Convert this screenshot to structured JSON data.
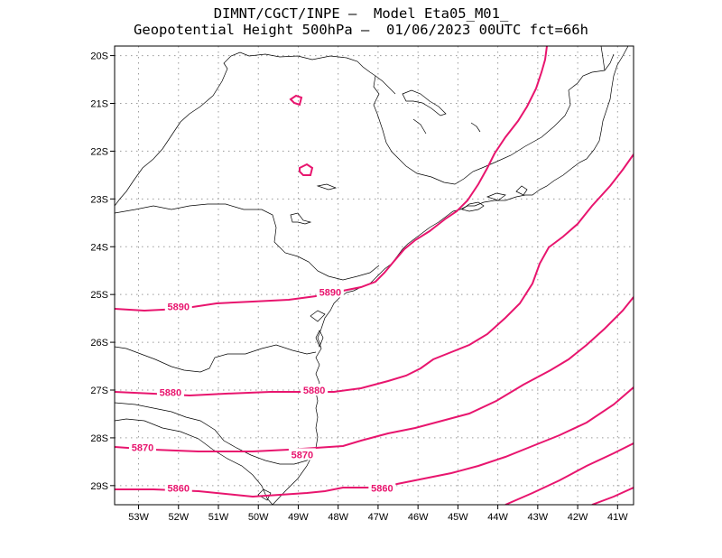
{
  "title": {
    "line1": "DIMNT/CGCT/INPE –  Model Eta05_M01_",
    "line2": "Geopotential Height 500hPa –  01/06/2023 00UTC fct=66h"
  },
  "axes": {
    "lat_ticks": [
      "20S",
      "21S",
      "22S",
      "23S",
      "24S",
      "25S",
      "26S",
      "27S",
      "28S",
      "29S"
    ],
    "lon_ticks": [
      "53W",
      "52W",
      "51W",
      "50W",
      "49W",
      "48W",
      "47W",
      "46W",
      "45W",
      "44W",
      "43W",
      "42W",
      "41W"
    ]
  },
  "colors": {
    "contour": "#e8156e",
    "coast": "#000000",
    "grid": "#9a9a9a"
  },
  "chart_data": {
    "type": "contour",
    "variable": "Geopotential Height 500hPa",
    "lon_range": [
      -53.6,
      -40.6
    ],
    "lat_range": [
      -29.4,
      -19.8
    ],
    "grid": true,
    "contour_labels": [
      {
        "text": "5890",
        "lon": -52.0,
        "lat": -25.25
      },
      {
        "text": "5890",
        "lon": -48.2,
        "lat": -24.95
      },
      {
        "text": "5880",
        "lon": -52.2,
        "lat": -27.05
      },
      {
        "text": "5880",
        "lon": -48.6,
        "lat": -27.0
      },
      {
        "text": "5870",
        "lon": -52.9,
        "lat": -28.2
      },
      {
        "text": "5870",
        "lon": -48.9,
        "lat": -28.35
      },
      {
        "text": "5860",
        "lon": -52.0,
        "lat": -29.05
      },
      {
        "text": "5860",
        "lon": -46.9,
        "lat": -29.05
      }
    ]
  }
}
